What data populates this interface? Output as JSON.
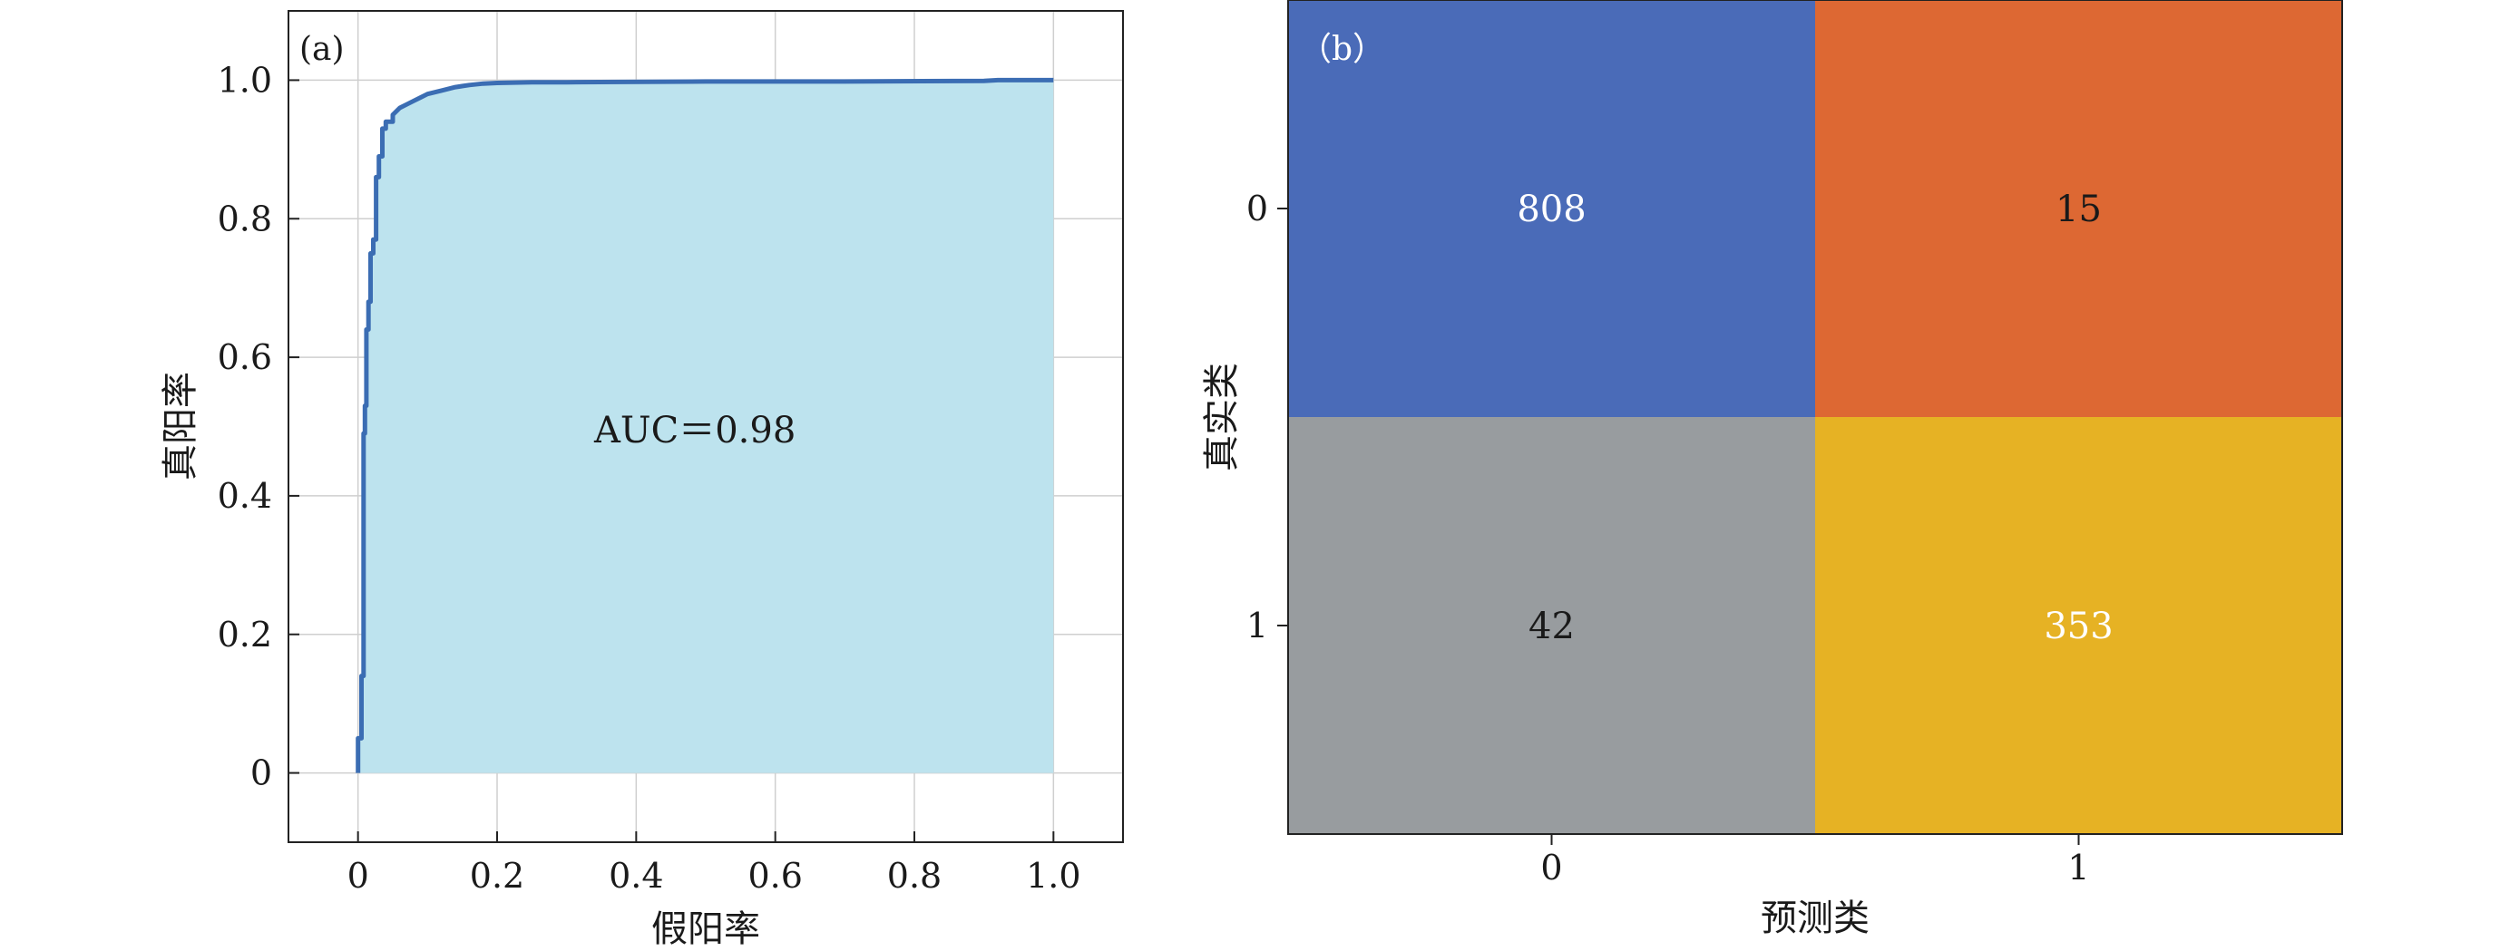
{
  "figure": {
    "panels": [
      {
        "panel_label": "(a)",
        "xlabel": "假阳率",
        "ylabel": "真阳率",
        "annotation": "AUC＝0.98",
        "xticks": [
          "0",
          "0.2",
          "0.4",
          "0.6",
          "0.8",
          "1.0"
        ],
        "yticks": [
          "0",
          "0.2",
          "0.4",
          "0.6",
          "0.8",
          "1.0"
        ]
      },
      {
        "panel_label": "（b）",
        "xlabel": "预测类",
        "ylabel": "真实类",
        "xticks": [
          "0",
          "1"
        ],
        "yticks": [
          "0",
          "1"
        ],
        "cells": [
          "808",
          "15",
          "42",
          "353"
        ]
      }
    ]
  },
  "colors": {
    "roc_line": "#3b6db3",
    "roc_fill": "#bde3ee",
    "grid": "#cfcfcf",
    "cm_tn": "#4a6bb8",
    "cm_fp": "#dd6833",
    "cm_fn": "#989c9f",
    "cm_tp": "#e6b224",
    "cell_text_dark_bg": "#ffffff",
    "cell_text_light_bg": "#1a1a1a"
  },
  "chart_data": [
    {
      "type": "line",
      "fill": "area-under-curve",
      "title": "",
      "xlabel": "假阳率",
      "ylabel": "真阳率",
      "xlim": [
        -0.1,
        1.1
      ],
      "ylim": [
        -0.1,
        1.1
      ],
      "grid": true,
      "annotation": "AUC＝0.98",
      "series": [
        {
          "x": [
            0.0,
            0.0,
            0.005,
            0.005,
            0.008,
            0.008,
            0.01,
            0.01,
            0.012,
            0.012,
            0.015,
            0.015,
            0.018,
            0.018,
            0.022,
            0.022,
            0.026,
            0.026,
            0.03,
            0.03,
            0.035,
            0.035,
            0.04,
            0.04,
            0.05,
            0.05,
            0.06,
            0.07,
            0.08,
            0.09,
            0.1,
            0.12,
            0.14,
            0.16,
            0.18,
            0.2,
            0.25,
            0.3,
            0.5,
            0.7,
            0.9,
            0.92,
            1.0
          ],
          "y": [
            0.0,
            0.05,
            0.05,
            0.14,
            0.14,
            0.49,
            0.49,
            0.53,
            0.53,
            0.64,
            0.64,
            0.68,
            0.68,
            0.75,
            0.75,
            0.77,
            0.77,
            0.86,
            0.86,
            0.89,
            0.89,
            0.93,
            0.93,
            0.94,
            0.94,
            0.95,
            0.96,
            0.965,
            0.97,
            0.975,
            0.98,
            0.985,
            0.99,
            0.993,
            0.995,
            0.996,
            0.997,
            0.997,
            0.998,
            0.998,
            0.999,
            1.0,
            1.0
          ]
        }
      ]
    },
    {
      "type": "heatmap",
      "title": "",
      "xlabel": "预测类",
      "ylabel": "真实类",
      "x_categories": [
        "0",
        "1"
      ],
      "y_categories": [
        "0",
        "1"
      ],
      "values": [
        [
          808,
          15
        ],
        [
          42,
          353
        ]
      ]
    }
  ]
}
